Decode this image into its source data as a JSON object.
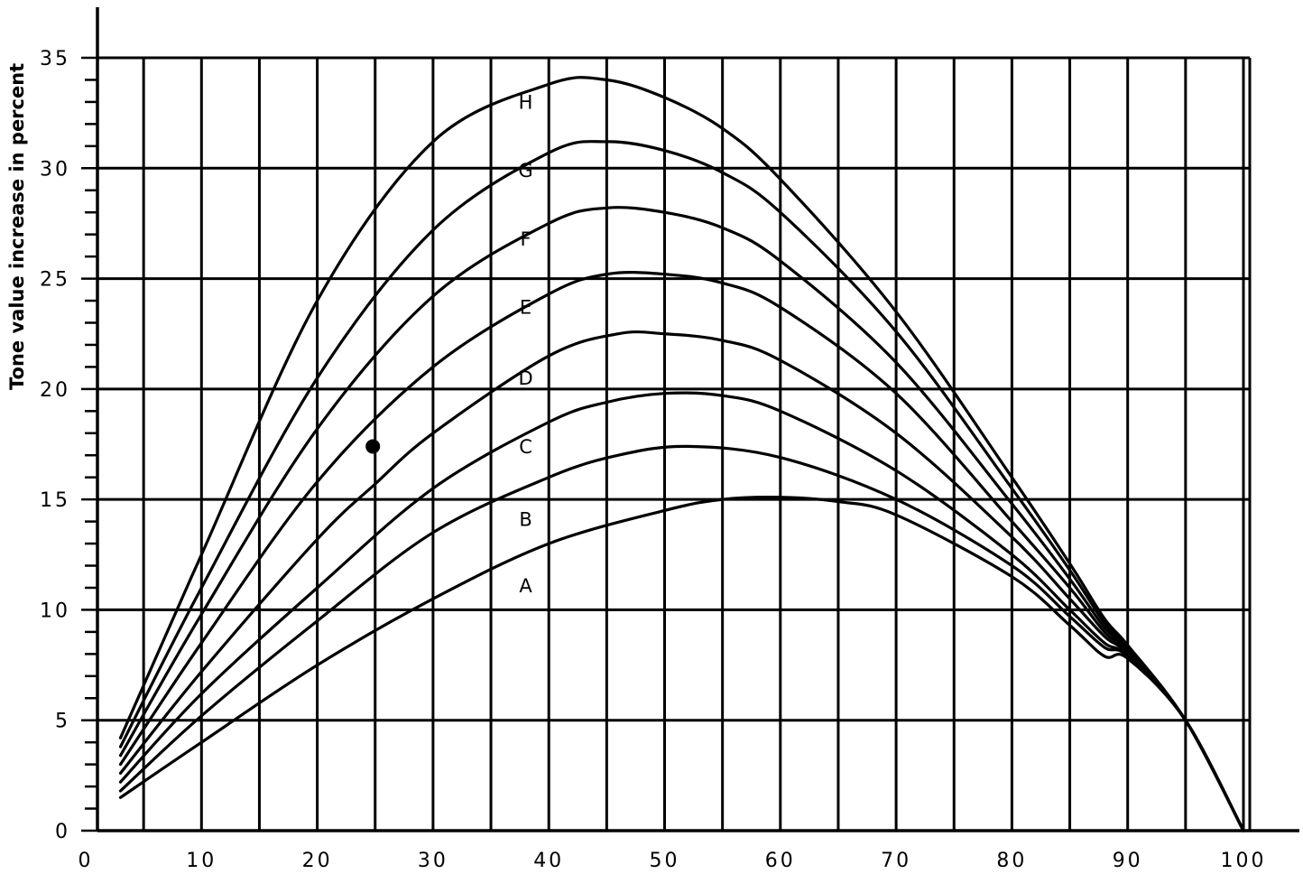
{
  "chart_data": {
    "type": "line",
    "title": "",
    "xlabel": "",
    "ylabel": "Tone value increase in percent",
    "xlim": [
      0,
      100
    ],
    "ylim": [
      0,
      35
    ],
    "x_ticks": [
      "0",
      "10",
      "20",
      "30",
      "40",
      "50",
      "60",
      "70",
      "80",
      "90",
      "100"
    ],
    "y_ticks": [
      "0",
      "5",
      "10",
      "15",
      "20",
      "25",
      "30",
      "35"
    ],
    "grid": true,
    "legend": "none",
    "series": [
      {
        "name": "A",
        "label_at": [
          38,
          10.8
        ],
        "x": [
          3,
          10,
          20,
          30,
          40,
          50,
          55,
          60,
          65,
          70,
          80,
          85,
          88,
          90,
          95,
          100
        ],
        "y": [
          1.5,
          4,
          7.5,
          10.5,
          13,
          14.5,
          15,
          15.1,
          14.9,
          14.3,
          11.5,
          9.3,
          7.9,
          7.8,
          5,
          0
        ]
      },
      {
        "name": "B",
        "label_at": [
          38,
          13.8
        ],
        "x": [
          3,
          10,
          20,
          30,
          40,
          46,
          52,
          60,
          70,
          80,
          85,
          88,
          90,
          95,
          100
        ],
        "y": [
          1.8,
          5.2,
          9.5,
          13.5,
          16,
          17,
          17.4,
          16.9,
          15,
          12,
          9.7,
          8.3,
          7.9,
          5,
          0
        ]
      },
      {
        "name": "C",
        "label_at": [
          38,
          17.1
        ],
        "x": [
          3,
          10,
          20,
          30,
          40,
          45,
          50,
          55,
          60,
          70,
          80,
          85,
          88,
          90,
          95,
          100
        ],
        "y": [
          2.2,
          6.2,
          11,
          15.5,
          18.5,
          19.4,
          19.8,
          19.7,
          19,
          16.3,
          12.5,
          10,
          8.5,
          7.9,
          5,
          0
        ]
      },
      {
        "name": "D",
        "label_at": [
          38,
          20.2
        ],
        "x": [
          3,
          10,
          20,
          25,
          30,
          40,
          46,
          50,
          55,
          60,
          70,
          80,
          85,
          88,
          90,
          95,
          100
        ],
        "y": [
          2.6,
          7.2,
          13.2,
          15.7,
          18,
          21.5,
          22.5,
          22.5,
          22.2,
          21.3,
          18,
          13.3,
          10.5,
          8.8,
          8,
          5,
          0
        ]
      },
      {
        "name": "E",
        "label_at": [
          38,
          23.4
        ],
        "x": [
          3,
          10,
          20,
          30,
          40,
          45,
          50,
          55,
          60,
          70,
          80,
          85,
          88,
          90,
          95,
          100
        ],
        "y": [
          3,
          8.5,
          15.8,
          21,
          24.3,
          25.2,
          25.2,
          24.8,
          23.7,
          19.8,
          14,
          11,
          9,
          8.1,
          5,
          0
        ]
      },
      {
        "name": "F",
        "label_at": [
          38,
          26.5
        ],
        "x": [
          3,
          10,
          20,
          30,
          40,
          45,
          50,
          55,
          60,
          70,
          80,
          85,
          88,
          90,
          95,
          100
        ],
        "y": [
          3.4,
          9.8,
          18.2,
          24.2,
          27.5,
          28.2,
          28,
          27.3,
          25.8,
          21.2,
          14.8,
          11.4,
          9.2,
          8.2,
          5,
          0
        ]
      },
      {
        "name": "G",
        "label_at": [
          38,
          29.6
        ],
        "x": [
          3,
          10,
          20,
          30,
          40,
          45,
          50,
          55,
          60,
          70,
          80,
          85,
          88,
          90,
          95,
          100
        ],
        "y": [
          3.8,
          11,
          20.5,
          27.2,
          30.7,
          31.2,
          30.8,
          29.8,
          28,
          22.6,
          15.5,
          11.8,
          9.4,
          8.3,
          5,
          0
        ]
      },
      {
        "name": "H",
        "label_at": [
          38,
          32.7
        ],
        "x": [
          3,
          10,
          20,
          30,
          40,
          45,
          50,
          55,
          60,
          70,
          80,
          85,
          88,
          90,
          95,
          100
        ],
        "y": [
          4.2,
          12.5,
          24,
          31.2,
          33.8,
          34,
          33.2,
          31.8,
          29.5,
          23.5,
          16,
          12.1,
          9.6,
          8.4,
          5,
          0
        ]
      }
    ],
    "marker": {
      "x": 24.8,
      "y": 17.4
    }
  }
}
